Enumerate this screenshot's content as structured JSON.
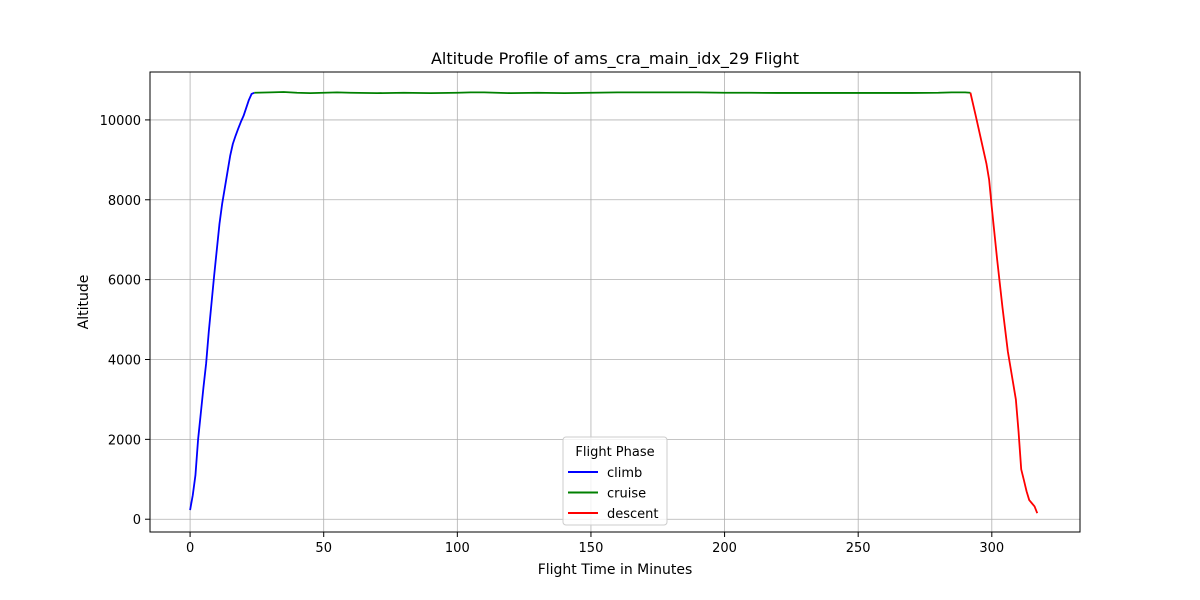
{
  "chart_data": {
    "type": "line",
    "title": "Altitude Profile of ams_cra_main_idx_29 Flight",
    "xlabel": "Flight Time in Minutes",
    "ylabel": "Altitude",
    "xlim": [
      -15,
      333
    ],
    "ylim": [
      -320,
      11200
    ],
    "xticks": [
      0,
      50,
      100,
      150,
      200,
      250,
      300
    ],
    "yticks": [
      0,
      2000,
      4000,
      6000,
      8000,
      10000
    ],
    "grid": true,
    "legend": {
      "title": "Flight Phase",
      "placement": "bottom-center",
      "entries": [
        "climb",
        "cruise",
        "descent"
      ]
    },
    "series": [
      {
        "name": "climb",
        "color": "#0000ff",
        "x": [
          0,
          1,
          2,
          3,
          4,
          5,
          6,
          7,
          8,
          9,
          10,
          11,
          12,
          13,
          14,
          15,
          16,
          17,
          18,
          19,
          20,
          21,
          22,
          23,
          24
        ],
        "y": [
          230,
          600,
          1100,
          2000,
          2650,
          3300,
          3900,
          4700,
          5400,
          6100,
          6750,
          7400,
          7900,
          8300,
          8700,
          9100,
          9400,
          9600,
          9780,
          9950,
          10100,
          10300,
          10500,
          10650,
          10680
        ]
      },
      {
        "name": "cruise",
        "color": "#008000",
        "x": [
          24,
          30,
          35,
          40,
          45,
          50,
          55,
          60,
          70,
          80,
          90,
          100,
          105,
          110,
          120,
          130,
          140,
          150,
          160,
          170,
          180,
          190,
          200,
          210,
          220,
          230,
          240,
          250,
          260,
          270,
          280,
          285,
          290,
          292
        ],
        "y": [
          10680,
          10690,
          10700,
          10680,
          10670,
          10680,
          10690,
          10680,
          10670,
          10680,
          10670,
          10680,
          10690,
          10690,
          10670,
          10680,
          10670,
          10680,
          10690,
          10690,
          10690,
          10690,
          10680,
          10680,
          10675,
          10675,
          10675,
          10675,
          10675,
          10675,
          10680,
          10690,
          10690,
          10680
        ]
      },
      {
        "name": "descent",
        "color": "#ff0000",
        "x": [
          292,
          294,
          296,
          298,
          299,
          300,
          302,
          304,
          306,
          308,
          309,
          310,
          311,
          312,
          313,
          314,
          315,
          316,
          317
        ],
        "y": [
          10680,
          10100,
          9500,
          8900,
          8500,
          7800,
          6500,
          5300,
          4200,
          3400,
          3000,
          2200,
          1250,
          980,
          700,
          480,
          400,
          320,
          150
        ]
      }
    ]
  }
}
